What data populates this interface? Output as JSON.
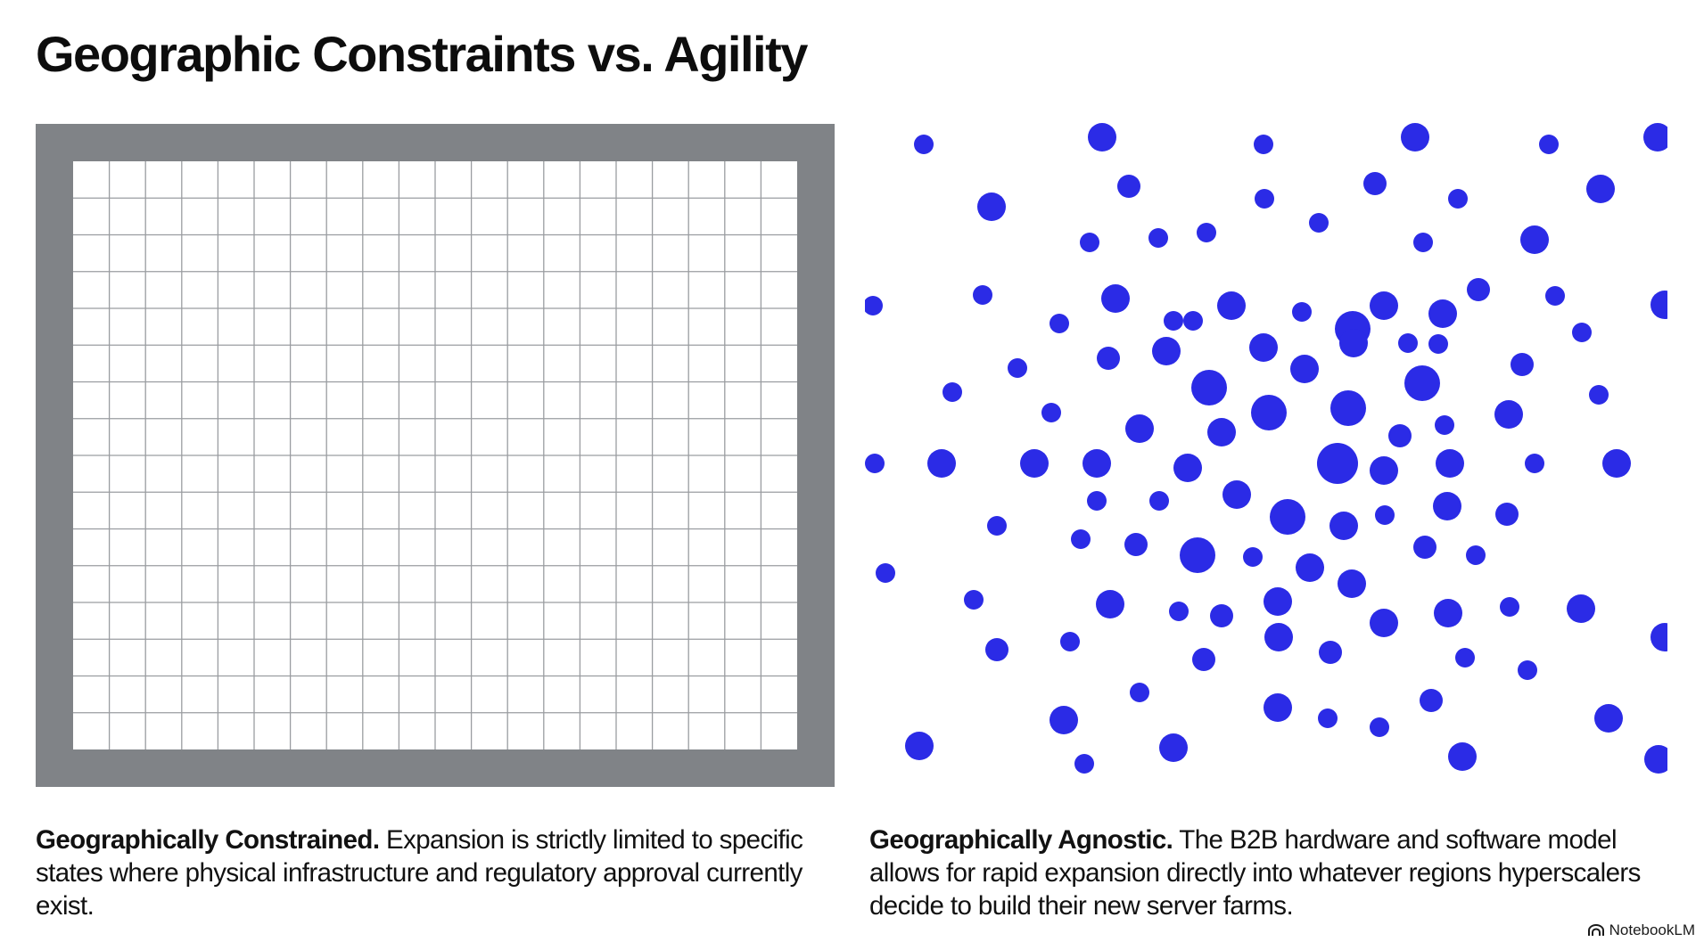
{
  "title": "Geographic Constraints vs. Agility",
  "left_panel": {
    "caption_lead": "Geographically Constrained.",
    "caption_body": " Expansion is strictly limited to specific states where physical infrastructure and regulatory approval currently exist.",
    "frame_color": "#808387",
    "line_color": "#9a9da1"
  },
  "right_panel": {
    "caption_lead": "Geographically Agnostic.",
    "caption_body": " The B2B hardware and software model allows for rapid expansion directly into whatever regions hyperscalers decide to build their new server farms.",
    "dot_color": "#2b2be6"
  },
  "footer": {
    "brand": "NotebookLM",
    "brand_icon": "notebooklm-logo-icon"
  }
}
